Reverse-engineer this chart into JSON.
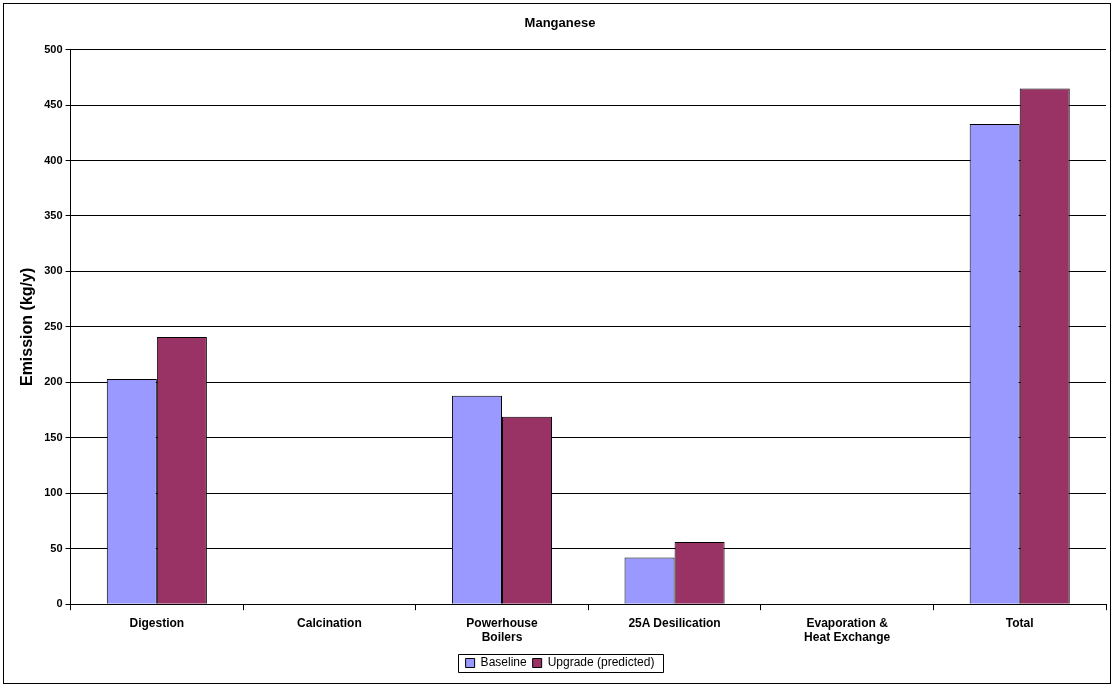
{
  "chart_data": {
    "type": "bar",
    "title": "Manganese",
    "ylabel": "Emission (kg/y)",
    "categories": [
      "Digestion",
      "Calcination",
      "Powerhouse\nBoilers",
      "25A Desilication",
      "Evaporation &\nHeat Exchange",
      "Total"
    ],
    "series": [
      {
        "name": "Baseline",
        "color": "#9999ff",
        "values": [
          203,
          0,
          188,
          42,
          0,
          433
        ]
      },
      {
        "name": "Upgrade (predicted)",
        "color": "#993366",
        "values": [
          241,
          0,
          169,
          56,
          0,
          465
        ]
      }
    ],
    "ylim": [
      0,
      500
    ],
    "yticks": [
      0,
      50,
      100,
      150,
      200,
      250,
      300,
      350,
      400,
      450,
      500
    ],
    "grid": "y",
    "legend": "bottom"
  }
}
